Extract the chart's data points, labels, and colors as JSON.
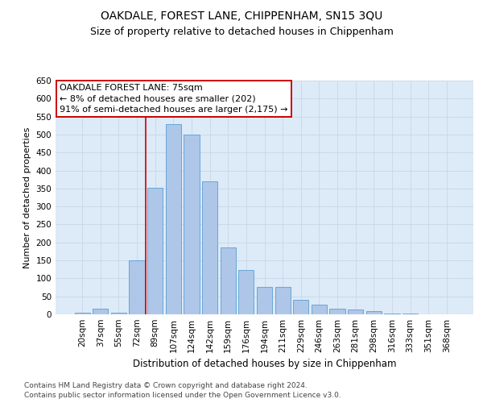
{
  "title1": "OAKDALE, FOREST LANE, CHIPPENHAM, SN15 3QU",
  "title2": "Size of property relative to detached houses in Chippenham",
  "xlabel": "Distribution of detached houses by size in Chippenham",
  "ylabel": "Number of detached properties",
  "categories": [
    "20sqm",
    "37sqm",
    "55sqm",
    "72sqm",
    "89sqm",
    "107sqm",
    "124sqm",
    "142sqm",
    "159sqm",
    "176sqm",
    "194sqm",
    "211sqm",
    "229sqm",
    "246sqm",
    "263sqm",
    "281sqm",
    "298sqm",
    "316sqm",
    "333sqm",
    "351sqm",
    "368sqm"
  ],
  "values": [
    5,
    15,
    5,
    150,
    353,
    530,
    500,
    370,
    185,
    123,
    77,
    77,
    40,
    28,
    15,
    13,
    8,
    3,
    2,
    1,
    1
  ],
  "bar_color": "#aec6e8",
  "bar_edgecolor": "#5a9fd4",
  "vline_color": "#cc0000",
  "annotation_text": "OAKDALE FOREST LANE: 75sqm\n← 8% of detached houses are smaller (202)\n91% of semi-detached houses are larger (2,175) →",
  "annotation_box_edgecolor": "#cc0000",
  "annotation_box_facecolor": "#ffffff",
  "ylim": [
    0,
    650
  ],
  "yticks": [
    0,
    50,
    100,
    150,
    200,
    250,
    300,
    350,
    400,
    450,
    500,
    550,
    600,
    650
  ],
  "grid_color": "#c8d8e8",
  "bg_color": "#ddeaf7",
  "footer": "Contains HM Land Registry data © Crown copyright and database right 2024.\nContains public sector information licensed under the Open Government Licence v3.0.",
  "title1_fontsize": 10,
  "title2_fontsize": 9,
  "xlabel_fontsize": 8.5,
  "ylabel_fontsize": 8,
  "annotation_fontsize": 8,
  "footer_fontsize": 6.5,
  "tick_fontsize": 7.5,
  "ytick_fontsize": 7.5
}
